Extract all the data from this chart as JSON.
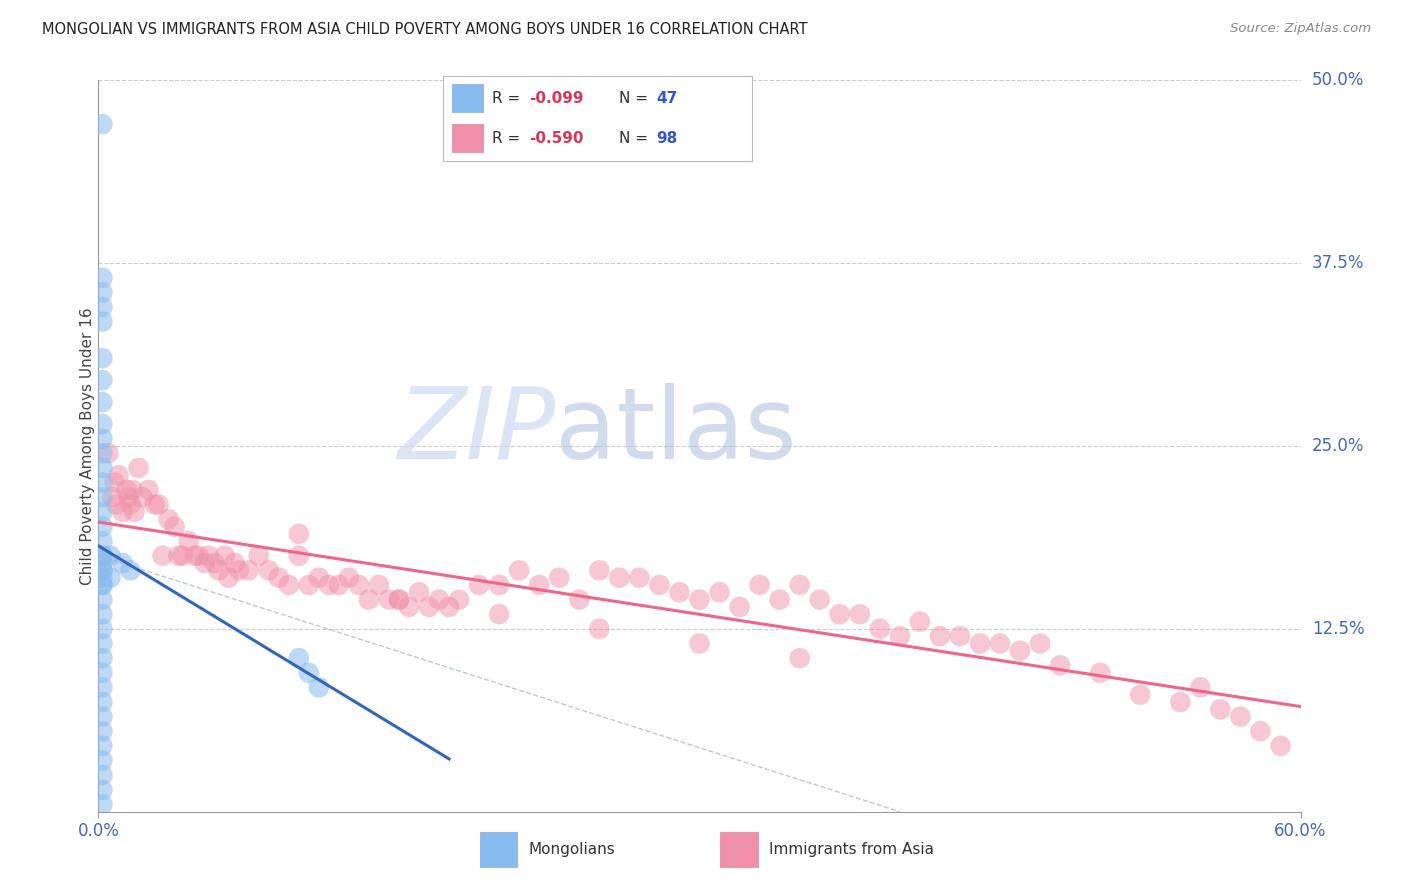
{
  "title": "MONGOLIAN VS IMMIGRANTS FROM ASIA CHILD POVERTY AMONG BOYS UNDER 16 CORRELATION CHART",
  "source": "Source: ZipAtlas.com",
  "ylabel": "Child Poverty Among Boys Under 16",
  "xlim": [
    0.0,
    0.6
  ],
  "ylim": [
    0.0,
    0.5
  ],
  "yticks_right": [
    0.125,
    0.25,
    0.375,
    0.5
  ],
  "ytick_labels_right": [
    "12.5%",
    "25.0%",
    "37.5%",
    "50.0%"
  ],
  "mongolian_color": "#88bbee",
  "immigrant_color": "#f090a8",
  "mongolian_line_color": "#3366bb",
  "immigrant_line_color": "#ee6688",
  "dashed_line_color": "#aabbcc",
  "watermark_zip_color": "#c5d5ea",
  "watermark_atlas_color": "#aac8e8",
  "background_color": "#ffffff",
  "grid_color": "#cccccc",
  "right_tick_color": "#4466bb",
  "legend_border_color": "#bbbbbb",
  "source_color": "#888888",
  "title_color": "#222222",
  "legend_R_color": "#dd3355",
  "legend_N_color": "#3355cc",
  "legend_text_color": "#333333",
  "mongolian_x": [
    0.002,
    0.002,
    0.002,
    0.002,
    0.002,
    0.002,
    0.002,
    0.002,
    0.002,
    0.002,
    0.002,
    0.002,
    0.002,
    0.002,
    0.002,
    0.002,
    0.002,
    0.002,
    0.002,
    0.002,
    0.002,
    0.002,
    0.002,
    0.002,
    0.002,
    0.002,
    0.002,
    0.002,
    0.002,
    0.002,
    0.002,
    0.002,
    0.002,
    0.002,
    0.002,
    0.002,
    0.002,
    0.002,
    0.002,
    0.002,
    0.006,
    0.006,
    0.012,
    0.016,
    0.1,
    0.105,
    0.11
  ],
  "mongolian_y": [
    0.47,
    0.365,
    0.355,
    0.345,
    0.335,
    0.31,
    0.295,
    0.28,
    0.265,
    0.255,
    0.245,
    0.235,
    0.225,
    0.215,
    0.205,
    0.195,
    0.185,
    0.175,
    0.165,
    0.155,
    0.145,
    0.135,
    0.125,
    0.115,
    0.105,
    0.095,
    0.085,
    0.075,
    0.065,
    0.055,
    0.045,
    0.035,
    0.025,
    0.015,
    0.005,
    0.175,
    0.17,
    0.165,
    0.16,
    0.155,
    0.175,
    0.16,
    0.17,
    0.165,
    0.105,
    0.095,
    0.085
  ],
  "immigrant_x": [
    0.005,
    0.007,
    0.008,
    0.009,
    0.01,
    0.012,
    0.014,
    0.015,
    0.016,
    0.017,
    0.018,
    0.02,
    0.022,
    0.025,
    0.028,
    0.03,
    0.032,
    0.035,
    0.038,
    0.04,
    0.042,
    0.045,
    0.048,
    0.05,
    0.053,
    0.055,
    0.058,
    0.06,
    0.063,
    0.065,
    0.068,
    0.07,
    0.075,
    0.08,
    0.085,
    0.09,
    0.095,
    0.1,
    0.105,
    0.11,
    0.115,
    0.12,
    0.125,
    0.13,
    0.135,
    0.14,
    0.145,
    0.15,
    0.155,
    0.16,
    0.165,
    0.17,
    0.175,
    0.18,
    0.19,
    0.2,
    0.21,
    0.22,
    0.23,
    0.24,
    0.25,
    0.26,
    0.27,
    0.28,
    0.29,
    0.3,
    0.31,
    0.32,
    0.33,
    0.34,
    0.35,
    0.36,
    0.37,
    0.38,
    0.39,
    0.4,
    0.41,
    0.42,
    0.43,
    0.44,
    0.45,
    0.46,
    0.47,
    0.48,
    0.5,
    0.52,
    0.54,
    0.55,
    0.56,
    0.57,
    0.58,
    0.59,
    0.1,
    0.15,
    0.2,
    0.25,
    0.3,
    0.35
  ],
  "immigrant_y": [
    0.245,
    0.215,
    0.225,
    0.21,
    0.23,
    0.205,
    0.22,
    0.215,
    0.21,
    0.22,
    0.205,
    0.235,
    0.215,
    0.22,
    0.21,
    0.21,
    0.175,
    0.2,
    0.195,
    0.175,
    0.175,
    0.185,
    0.175,
    0.175,
    0.17,
    0.175,
    0.17,
    0.165,
    0.175,
    0.16,
    0.17,
    0.165,
    0.165,
    0.175,
    0.165,
    0.16,
    0.155,
    0.175,
    0.155,
    0.16,
    0.155,
    0.155,
    0.16,
    0.155,
    0.145,
    0.155,
    0.145,
    0.145,
    0.14,
    0.15,
    0.14,
    0.145,
    0.14,
    0.145,
    0.155,
    0.155,
    0.165,
    0.155,
    0.16,
    0.145,
    0.165,
    0.16,
    0.16,
    0.155,
    0.15,
    0.145,
    0.15,
    0.14,
    0.155,
    0.145,
    0.155,
    0.145,
    0.135,
    0.135,
    0.125,
    0.12,
    0.13,
    0.12,
    0.12,
    0.115,
    0.115,
    0.11,
    0.115,
    0.1,
    0.095,
    0.08,
    0.075,
    0.085,
    0.07,
    0.065,
    0.055,
    0.045,
    0.19,
    0.145,
    0.135,
    0.125,
    0.115,
    0.105
  ]
}
